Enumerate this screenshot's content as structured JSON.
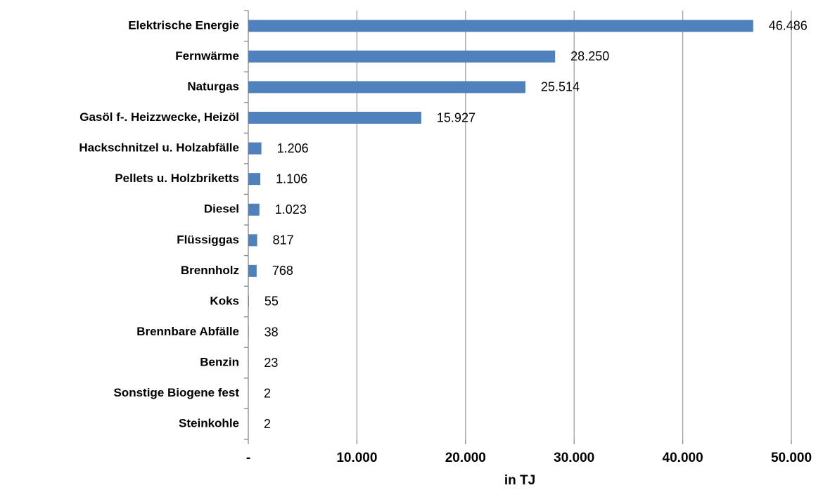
{
  "chart_data": {
    "type": "bar",
    "orientation": "horizontal",
    "categories": [
      "Elektrische Energie",
      "Fernwärme",
      "Naturgas",
      "Gasöl f-. Heizzwecke, Heizöl",
      "Hackschnitzel u. Holzabfälle",
      "Pellets u. Holzbriketts",
      "Diesel",
      "Flüssiggas",
      "Brennholz",
      "Koks",
      "Brennbare Abfälle",
      "Benzin",
      "Sonstige Biogene fest",
      "Steinkohle"
    ],
    "values": [
      46486,
      28250,
      25514,
      15927,
      1206,
      1106,
      1023,
      817,
      768,
      55,
      38,
      23,
      2,
      2
    ],
    "value_labels": [
      "46.486",
      "28.250",
      "25.514",
      "15.927",
      "1.206",
      "1.106",
      "1.023",
      "817",
      "768",
      "55",
      "38",
      "23",
      "2",
      "2"
    ],
    "color": "#4f81bd",
    "xlim": [
      0,
      50000
    ],
    "xticks": [
      {
        "value": 0,
        "label": "-"
      },
      {
        "value": 10000,
        "label": "10.000"
      },
      {
        "value": 20000,
        "label": "20.000"
      },
      {
        "value": 30000,
        "label": "30.000"
      },
      {
        "value": 40000,
        "label": "40.000"
      },
      {
        "value": 50000,
        "label": "50.000"
      }
    ],
    "x_label": "in TJ",
    "grid": true
  }
}
